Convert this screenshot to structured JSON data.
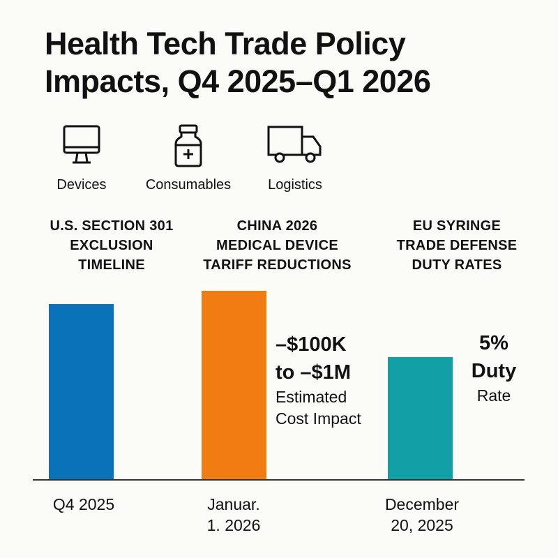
{
  "title": "Health Tech Trade Policy Impacts, Q4 2025–Q1 2026",
  "categories": [
    {
      "label": "Devices",
      "icon": "monitor-icon"
    },
    {
      "label": "Consumables",
      "icon": "medicine-bottle-icon"
    },
    {
      "label": "Logistics",
      "icon": "truck-icon"
    }
  ],
  "panels": [
    {
      "heading": [
        "U.S. SECTION 301",
        "EXCLUSION",
        "TIMELINE"
      ]
    },
    {
      "heading": [
        "CHINA 2026",
        "MEDICAL DEVICE",
        "TARIFF REDUCTIONS"
      ]
    },
    {
      "heading": [
        "EU SYRINGE",
        "TRADE DEFENSE",
        "DUTY RATES"
      ]
    }
  ],
  "annotations": {
    "china": {
      "line1": "–$100K",
      "line2": "to –$1M",
      "line3": "Estimated",
      "line4": "Cost Impact"
    },
    "eu": {
      "line1": "5%",
      "line2": "Duty",
      "line3": "Rate"
    }
  },
  "chart_data": {
    "type": "bar",
    "categories": [
      "Q4 2025",
      "Januar. 1. 2026",
      "December 20, 2025"
    ],
    "x_labels": [
      [
        "Q4 2025"
      ],
      [
        "Januar.",
        "1. 2026"
      ],
      [
        "December",
        "20, 2025"
      ]
    ],
    "values": [
      0.93,
      1.0,
      0.65
    ],
    "colors": [
      "#0a72b8",
      "#f07c12",
      "#12a0a6"
    ],
    "grid": false,
    "axis_color": "#333333"
  }
}
